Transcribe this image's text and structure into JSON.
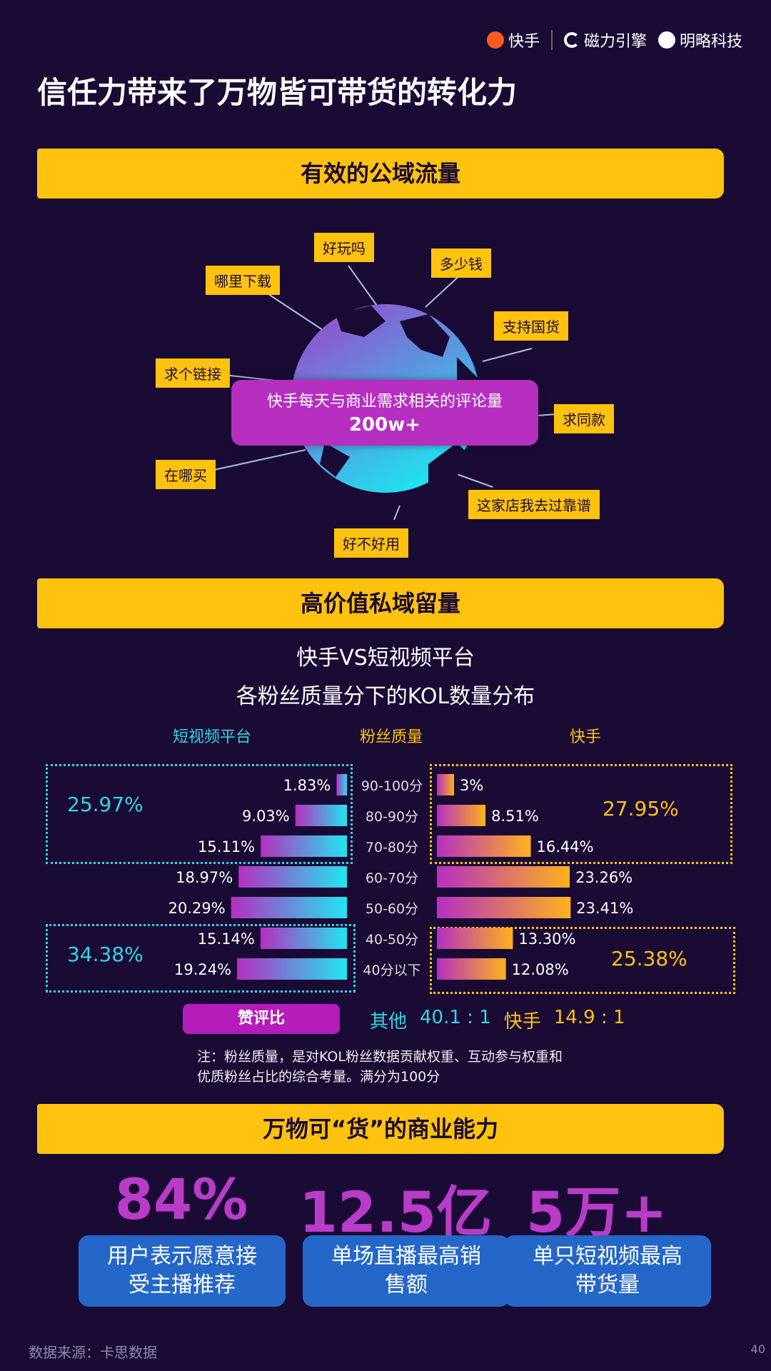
{
  "header": {
    "brand_kuaishou": "快手",
    "brand_cili": "磁力引擎",
    "brand_mingle": "明略科技"
  },
  "page_title": "信任力带来了万物皆可带货的转化力",
  "section1": {
    "banner": "有效的公域流量",
    "center_line1": "快手每天与商业需求相关的评论量",
    "center_line2": "200w+",
    "tags": [
      "好玩吗",
      "多少钱",
      "哪里下载",
      "支持国货",
      "求个链接",
      "求同款",
      "在哪买",
      "这家店我去过靠谱",
      "好不好用"
    ]
  },
  "section2": {
    "banner": "高价值私域留量",
    "title_line1": "快手VS短视频平台",
    "title_line2": "各粉丝质量分下的KOL数量分布",
    "col_left": "短视频平台",
    "col_mid": "粉丝质量",
    "col_right": "快手",
    "left_top_group": "25.97%",
    "left_bottom_group": "34.38%",
    "right_top_group": "27.95%",
    "right_bottom_group": "25.38%",
    "ratio_label": "赞评比",
    "ratio_other_label": "其他",
    "ratio_other_value": "40.1 : 1",
    "ratio_ks_label": "快手",
    "ratio_ks_value": "14.9 : 1",
    "note_line1": "注：粉丝质量，是对KOL粉丝数据贡献权重、互动参与权重和",
    "note_line2": "优质粉丝占比的综合考量。满分为100分"
  },
  "chart_data": {
    "type": "bar",
    "categories": [
      "90-100分",
      "80-90分",
      "70-80分",
      "60-70分",
      "50-60分",
      "40-50分",
      "40分以下"
    ],
    "series": [
      {
        "name": "短视频平台",
        "values": [
          1.83,
          9.03,
          15.11,
          18.97,
          20.29,
          15.14,
          19.24
        ],
        "labels": [
          "1.83%",
          "9.03%",
          "15.11%",
          "18.97%",
          "20.29%",
          "15.14%",
          "19.24%"
        ]
      },
      {
        "name": "快手",
        "values": [
          3,
          8.51,
          16.44,
          23.26,
          23.41,
          13.3,
          12.08
        ],
        "labels": [
          "3%",
          "8.51%",
          "16.44%",
          "23.26%",
          "23.41%",
          "13.30%",
          "12.08%"
        ]
      }
    ]
  },
  "section3": {
    "banner": "万物可“货”的商业能力",
    "kpis": [
      {
        "value": "84%",
        "line1": "用户表示愿意接",
        "line2": "受主播推荐"
      },
      {
        "value": "12.5亿",
        "line1": "单场直播最高销",
        "line2": "售额"
      },
      {
        "value": "5万+",
        "line1": "单只短视频最高",
        "line2": "带货量"
      }
    ]
  },
  "footer": {
    "source": "数据来源：卡思数据",
    "page_no": "40"
  },
  "colors": {
    "background": "#1a0b35",
    "banner": "#ffc20e",
    "cyan": "#2fd6e6",
    "gold": "#ffc20e",
    "purple": "#b62fc0",
    "blue": "#2567c9"
  }
}
